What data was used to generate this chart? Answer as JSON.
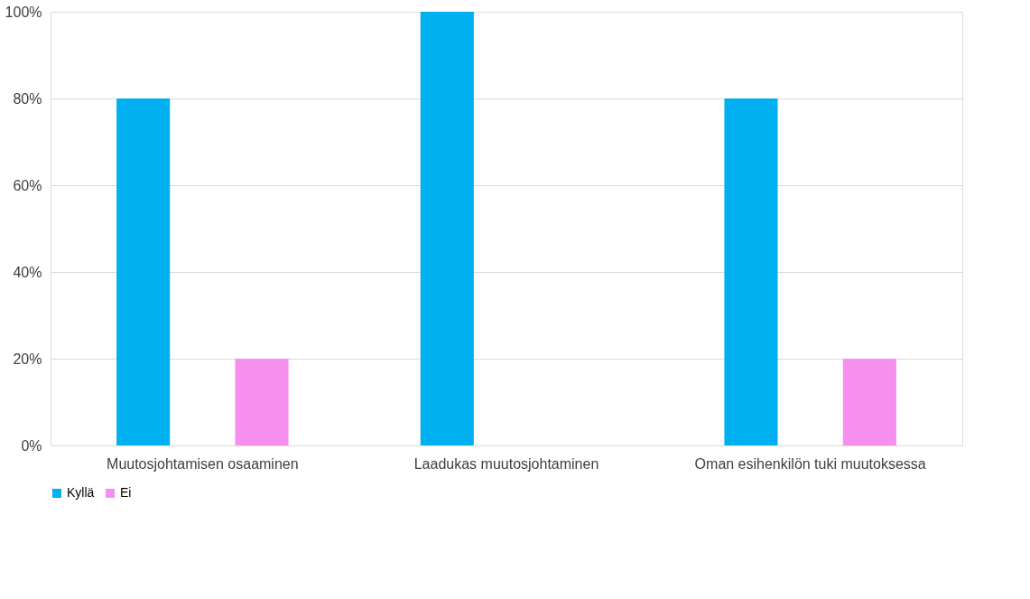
{
  "chart_data": {
    "type": "bar",
    "categories": [
      "Muutosjohtamisen osaaminen",
      "Laadukas muutosjohtaminen",
      "Oman esihenkilön tuki muutoksessa"
    ],
    "series": [
      {
        "name": "Kyllä",
        "color": "#00b0f0",
        "values": [
          80,
          100,
          80
        ]
      },
      {
        "name": "Ei",
        "color": "#f590ee",
        "values": [
          20,
          0,
          20
        ]
      }
    ],
    "ylim": [
      0,
      100
    ],
    "yticks": [
      {
        "value": 0,
        "label": "0%"
      },
      {
        "value": 20,
        "label": "20%"
      },
      {
        "value": 40,
        "label": "40%"
      },
      {
        "value": 60,
        "label": "60%"
      },
      {
        "value": 80,
        "label": "80%"
      },
      {
        "value": 100,
        "label": "100%"
      }
    ],
    "grid": "y",
    "legend": "bottom"
  }
}
